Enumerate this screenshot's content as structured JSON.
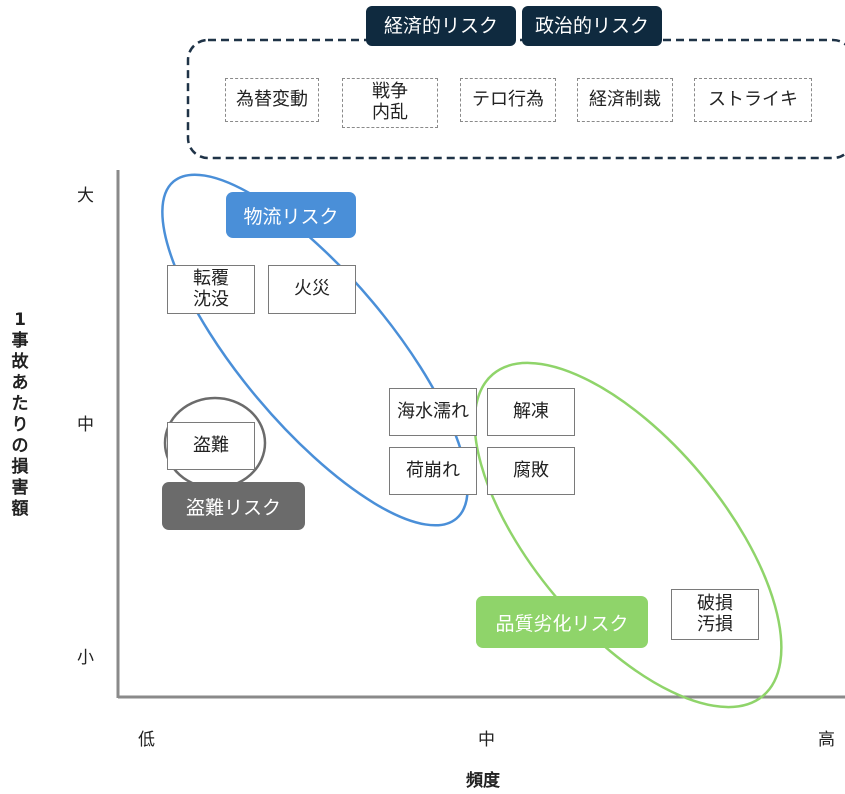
{
  "top_group": {
    "tags": [
      "経済的リスク",
      "政治的リスク"
    ],
    "items": [
      "為替変動",
      "戦争\n内乱",
      "テロ行為",
      "経済制裁",
      "ストライキ"
    ]
  },
  "axes": {
    "y_title": "1事故あたりの損害額",
    "x_title": "頻度",
    "y_ticks": [
      "大",
      "中",
      "小"
    ],
    "x_ticks": [
      "低",
      "中",
      "高"
    ]
  },
  "groups": {
    "logistics": {
      "label": "物流リスク",
      "color": "#4a8fd8"
    },
    "theft": {
      "label": "盗難リスク",
      "color": "#6b6b6b"
    },
    "quality": {
      "label": "品質劣化リスク",
      "color": "#8fd46a"
    }
  },
  "items": {
    "capsize": "転覆\n沈没",
    "fire": "火災",
    "theft": "盗難",
    "seawater": "海水濡れ",
    "thaw": "解凍",
    "cargo_collapse": "荷崩れ",
    "rot": "腐敗",
    "damage": "破損\n汚損"
  }
}
